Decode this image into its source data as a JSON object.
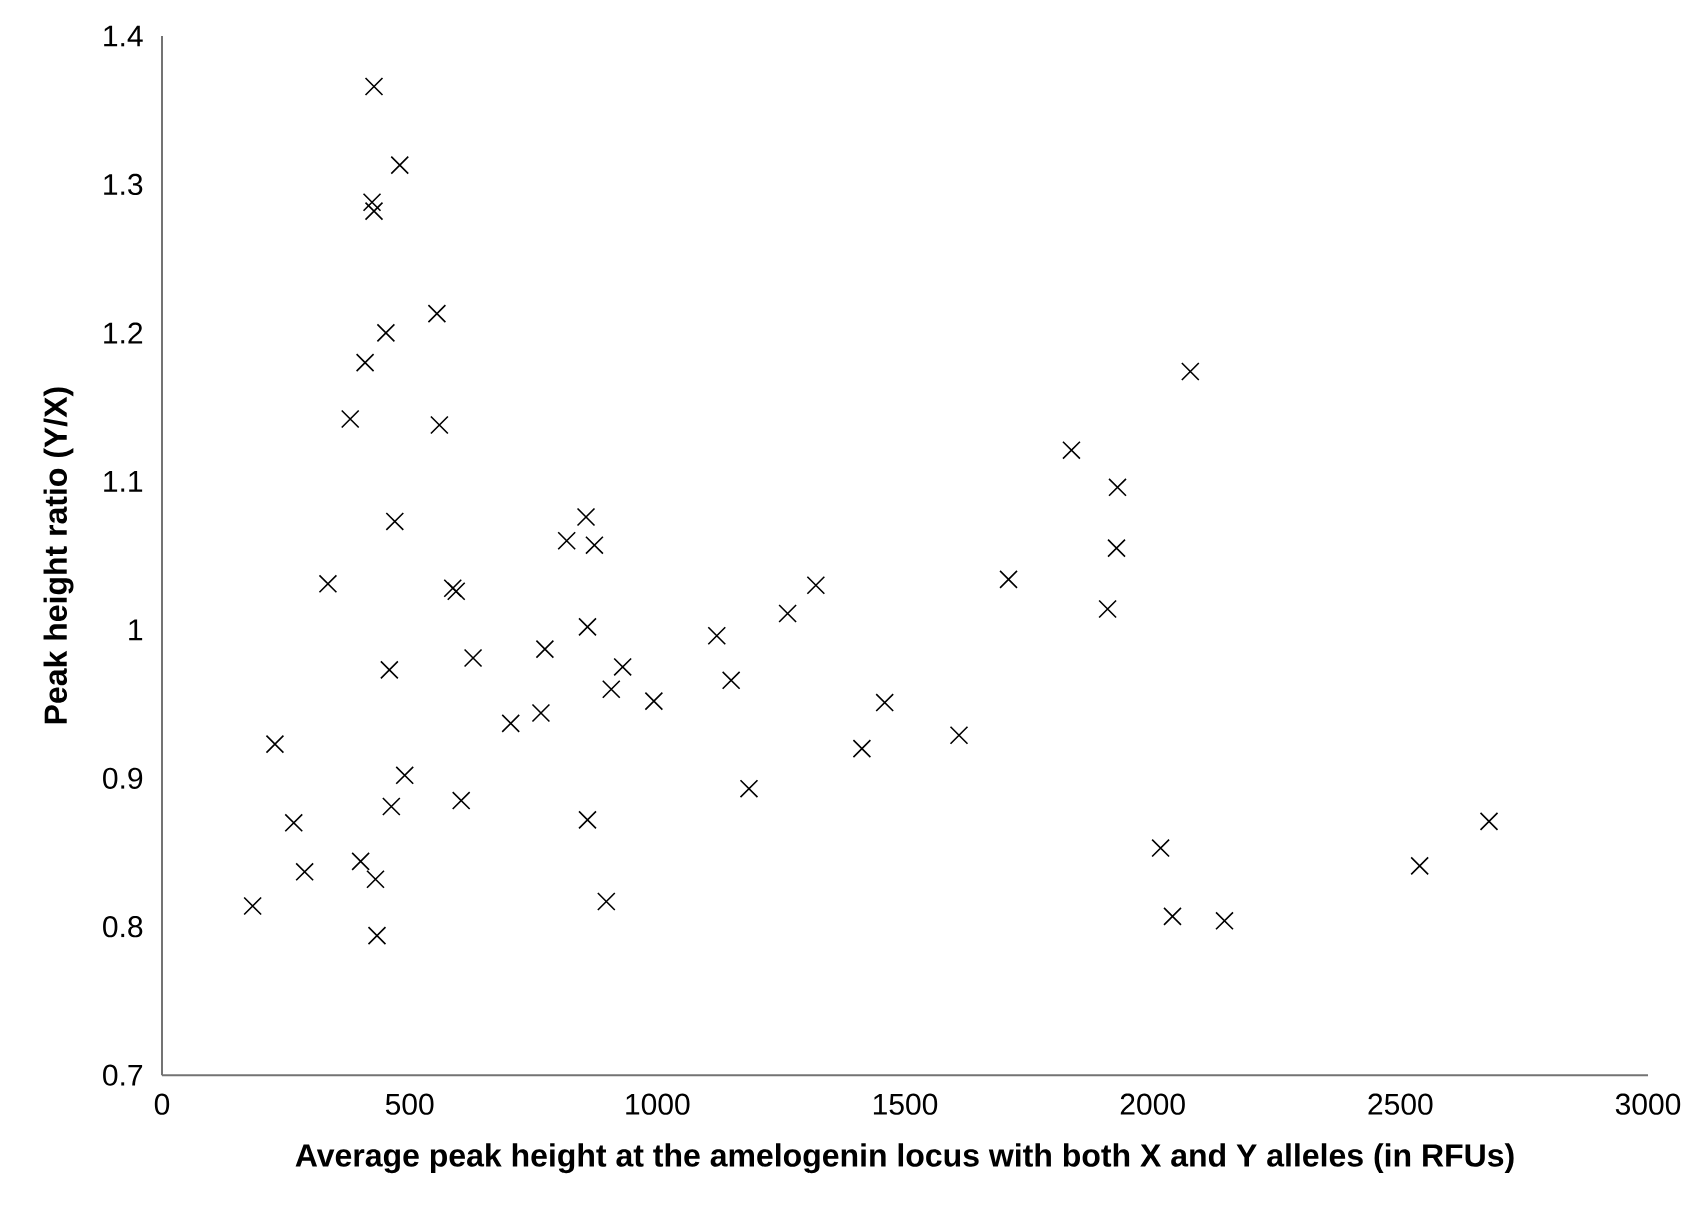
{
  "chart_data": {
    "type": "scatter",
    "xlabel": "Average peak height at the amelogenin locus with both X and Y alleles (in RFUs)",
    "ylabel": "Peak height ratio (Y/X)",
    "marker": "cross",
    "grid": false,
    "xlim": [
      0,
      3000
    ],
    "ylim": [
      0.7,
      1.4
    ],
    "xticks": [
      0,
      500,
      1000,
      1500,
      2000,
      2500,
      3000
    ],
    "yticks": [
      0.7,
      0.8,
      0.9,
      1,
      1.1,
      1.2,
      1.3,
      1.4
    ],
    "series": [
      {
        "color": "#000000",
        "x": [
          428,
          480,
          424,
          428,
          555,
          452,
          410,
          380,
          560,
          470,
          856,
          817,
          873,
          335,
          587,
          594,
          859,
          459,
          628,
          773,
          930,
          907,
          993,
          765,
          704,
          228,
          490,
          463,
          604,
          859,
          266,
          288,
          401,
          431,
          183,
          897,
          434,
          1120,
          1149,
          1185,
          1263,
          1320,
          1413,
          1459,
          1609,
          1709,
          1836,
          1929,
          1927,
          1909,
          2076,
          2016,
          2040,
          2145,
          2539,
          2679
        ],
        "values": [
          1.366,
          1.313,
          1.288,
          1.282,
          1.213,
          1.2,
          1.18,
          1.142,
          1.138,
          1.073,
          1.076,
          1.06,
          1.057,
          1.031,
          1.028,
          1.026,
          1.002,
          0.973,
          0.981,
          0.987,
          0.975,
          0.96,
          0.952,
          0.944,
          0.937,
          0.923,
          0.902,
          0.881,
          0.885,
          0.872,
          0.87,
          0.837,
          0.844,
          0.832,
          0.814,
          0.817,
          0.794,
          0.996,
          0.966,
          0.893,
          1.011,
          1.03,
          0.92,
          0.951,
          0.929,
          1.034,
          1.121,
          1.096,
          1.055,
          1.014,
          1.174,
          0.853,
          0.807,
          0.804,
          0.841,
          0.871
        ]
      }
    ]
  }
}
